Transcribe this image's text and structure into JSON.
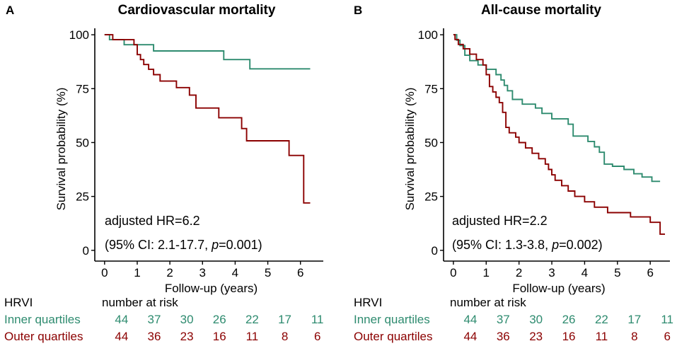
{
  "chart_data": [
    {
      "panel": "A",
      "type": "line",
      "step": true,
      "title": "Cardiovascular mortality",
      "xlabel": "Follow-up (years)",
      "ylabel": "Survival probability (%)",
      "xlim": [
        -0.3,
        6.7
      ],
      "ylim": [
        -5,
        103
      ],
      "xticks": [
        0,
        1,
        2,
        3,
        4,
        5,
        6
      ],
      "yticks": [
        0,
        25,
        50,
        75,
        100
      ],
      "annotation_line1": "adjusted HR=6.2",
      "annotation_line2_prefix": "(95% CI: 2.1-17.7, ",
      "annotation_p_symbol": "p",
      "annotation_line2_suffix": "=0.001)",
      "series": [
        {
          "name": "Inner quartiles",
          "color": "#2e8b6f",
          "x": [
            0,
            0.15,
            0.15,
            0.6,
            0.6,
            0.85,
            0.85,
            1.5,
            1.5,
            2.05,
            2.05,
            2.7,
            2.7,
            3.65,
            3.65,
            4.45,
            4.45,
            6.3
          ],
          "y": [
            100,
            100,
            97.7,
            97.7,
            95.4,
            95.4,
            95.4,
            95.4,
            92.5,
            92.5,
            92.5,
            92.5,
            92.5,
            92.5,
            88.5,
            88.5,
            84.2,
            84.2
          ]
        },
        {
          "name": "Outer quartiles",
          "color": "#8b0000",
          "x": [
            0,
            0.25,
            0.25,
            0.9,
            0.9,
            1.0,
            1.0,
            1.1,
            1.1,
            1.2,
            1.2,
            1.35,
            1.35,
            1.5,
            1.5,
            1.7,
            1.7,
            2.2,
            2.2,
            2.6,
            2.6,
            2.8,
            2.8,
            3.5,
            3.5,
            3.8,
            3.8,
            4.2,
            4.2,
            4.35,
            4.35,
            5.1,
            5.1,
            5.65,
            5.65,
            6.1,
            6.1,
            6.3
          ],
          "y": [
            100,
            100,
            97.7,
            97.7,
            95.4,
            95.4,
            90.8,
            90.8,
            88.5,
            88.5,
            86.2,
            86.2,
            84.0,
            84.0,
            81.5,
            81.5,
            78.5,
            78.5,
            75.5,
            75.5,
            72.0,
            72.0,
            66.0,
            66.0,
            61.5,
            61.5,
            61.5,
            61.5,
            56.5,
            56.5,
            50.8,
            50.8,
            50.8,
            50.8,
            44.0,
            44.0,
            22.0,
            22.0
          ]
        }
      ],
      "risk_table": {
        "header_label": "HRVI",
        "header_title": "number at risk",
        "times": [
          0,
          1,
          2,
          3,
          4,
          5,
          6
        ],
        "rows": [
          {
            "label": "Inner quartiles",
            "color": "#2e8b6f",
            "values": [
              "44",
              "37",
              "30",
              "26",
              "22",
              "17",
              "11"
            ]
          },
          {
            "label": "Outer quartiles",
            "color": "#8b0000",
            "values": [
              "44",
              "36",
              "23",
              "16",
              "11",
              "8",
              "6"
            ]
          }
        ]
      }
    },
    {
      "panel": "B",
      "type": "line",
      "step": true,
      "title": "All-cause mortality",
      "xlabel": "Follow-up (years)",
      "ylabel": "Survival probability (%)",
      "xlim": [
        -0.3,
        6.6
      ],
      "ylim": [
        -5,
        103
      ],
      "xticks": [
        0,
        1,
        2,
        3,
        4,
        5,
        6
      ],
      "yticks": [
        0,
        25,
        50,
        75,
        100
      ],
      "annotation_line1": "adjusted HR=2.2",
      "annotation_line2_prefix": "(95% CI: 1.3-3.8, ",
      "annotation_p_symbol": "p",
      "annotation_line2_suffix": "=0.002)",
      "series": [
        {
          "name": "Inner quartiles",
          "color": "#2e8b6f",
          "x": [
            0,
            0.1,
            0.1,
            0.2,
            0.2,
            0.35,
            0.35,
            0.5,
            0.5,
            0.75,
            0.75,
            1.0,
            1.0,
            1.3,
            1.3,
            1.45,
            1.45,
            1.55,
            1.55,
            1.65,
            1.65,
            1.8,
            1.8,
            2.1,
            2.1,
            2.5,
            2.5,
            2.7,
            2.7,
            3.0,
            3.0,
            3.5,
            3.5,
            3.65,
            3.65,
            4.1,
            4.1,
            4.3,
            4.3,
            4.45,
            4.45,
            4.6,
            4.6,
            4.85,
            4.85,
            5.2,
            5.2,
            5.5,
            5.5,
            5.75,
            5.75,
            6.05,
            6.05,
            6.3
          ],
          "y": [
            100,
            100,
            97.5,
            97.5,
            95.0,
            95.0,
            90.5,
            90.5,
            88.0,
            88.0,
            86.0,
            86.0,
            84.0,
            84.0,
            81.5,
            81.5,
            79.0,
            79.0,
            76.5,
            76.5,
            74.0,
            74.0,
            70.0,
            70.0,
            67.8,
            67.8,
            66.0,
            66.0,
            63.5,
            63.5,
            61.0,
            61.0,
            58.5,
            58.5,
            53.0,
            53.0,
            50.5,
            50.5,
            48.0,
            48.0,
            45.5,
            45.5,
            40.0,
            40.0,
            39.0,
            39.0,
            37.5,
            37.5,
            35.5,
            35.5,
            34.0,
            34.0,
            32.0,
            32.0
          ]
        },
        {
          "name": "Outer quartiles",
          "color": "#8b0000",
          "x": [
            0,
            0.05,
            0.05,
            0.15,
            0.15,
            0.3,
            0.3,
            0.5,
            0.5,
            0.7,
            0.7,
            0.9,
            0.9,
            1.0,
            1.0,
            1.1,
            1.1,
            1.2,
            1.2,
            1.3,
            1.3,
            1.4,
            1.4,
            1.5,
            1.5,
            1.6,
            1.6,
            1.7,
            1.7,
            1.9,
            1.9,
            2.0,
            2.0,
            2.2,
            2.2,
            2.4,
            2.4,
            2.6,
            2.6,
            2.8,
            2.8,
            2.9,
            2.9,
            3.0,
            3.0,
            3.1,
            3.1,
            3.3,
            3.3,
            3.5,
            3.5,
            3.7,
            3.7,
            4.0,
            4.0,
            4.3,
            4.3,
            4.7,
            4.7,
            5.4,
            5.4,
            6.0,
            6.0,
            6.3,
            6.3,
            6.45
          ],
          "y": [
            100,
            100,
            97.8,
            97.8,
            95.5,
            95.5,
            93.5,
            93.5,
            91.0,
            91.0,
            88.5,
            88.5,
            86.0,
            86.0,
            81.5,
            81.5,
            76.0,
            76.0,
            73.5,
            73.5,
            71.0,
            71.0,
            68.5,
            68.5,
            64.0,
            64.0,
            57.0,
            57.0,
            54.5,
            54.5,
            52.5,
            52.5,
            50.0,
            50.0,
            47.5,
            47.5,
            45.0,
            45.0,
            42.5,
            42.5,
            40.0,
            40.0,
            37.5,
            37.5,
            35.0,
            35.0,
            32.5,
            32.5,
            30.0,
            30.0,
            27.5,
            27.5,
            25.0,
            25.0,
            22.5,
            22.5,
            20.0,
            20.0,
            17.5,
            17.5,
            15.5,
            15.5,
            13.0,
            13.0,
            7.5,
            7.5
          ]
        }
      ],
      "risk_table": {
        "header_label": "HRVI",
        "header_title": "number at risk",
        "times": [
          0,
          1,
          2,
          3,
          4,
          5,
          6
        ],
        "rows": [
          {
            "label": "Inner quartiles",
            "color": "#2e8b6f",
            "values": [
              "44",
              "37",
              "30",
              "26",
              "22",
              "17",
              "11"
            ]
          },
          {
            "label": "Outer quartiles",
            "color": "#8b0000",
            "values": [
              "44",
              "36",
              "23",
              "16",
              "11",
              "8",
              "6"
            ]
          }
        ]
      }
    }
  ]
}
